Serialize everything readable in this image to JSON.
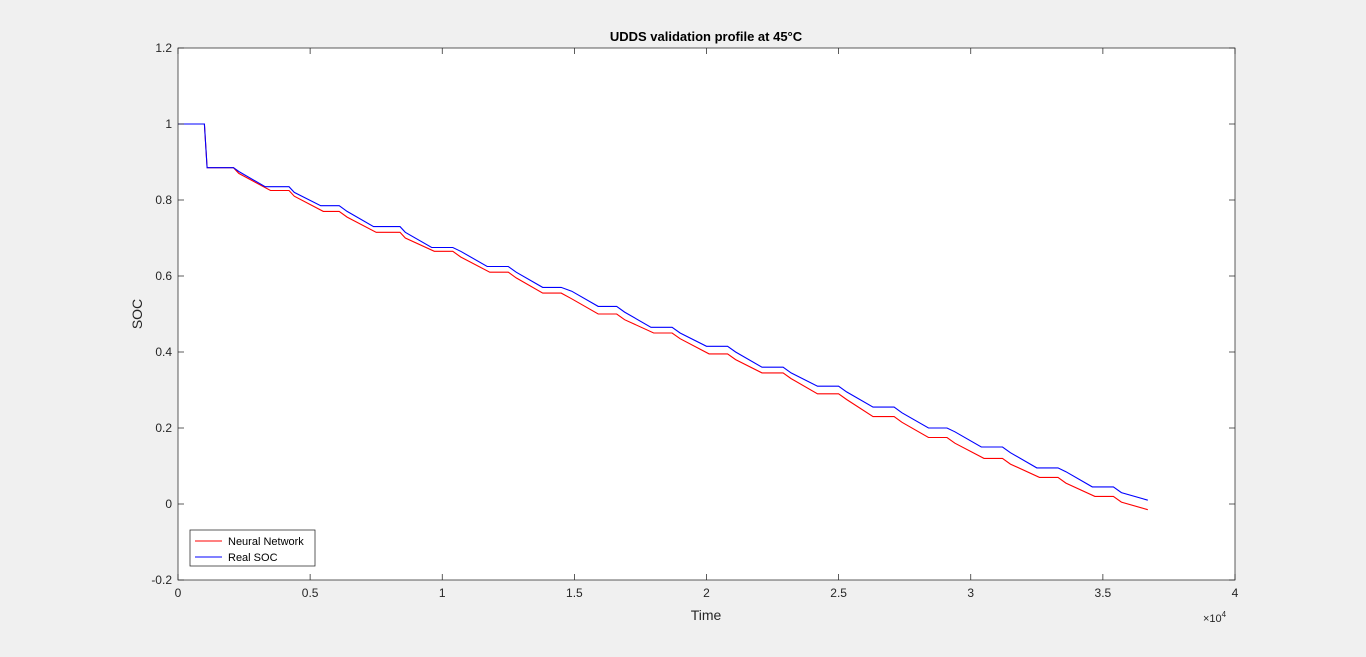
{
  "chart_data": {
    "type": "line",
    "title": "UDDS validation profile at 45°C",
    "xlabel": "Time",
    "ylabel": "SOC",
    "xlim": [
      0,
      4
    ],
    "ylim": [
      -0.2,
      1.2
    ],
    "x_multiplier_label": "×10^4",
    "x_multiplier_base": "×10",
    "x_multiplier_exp": "4",
    "xticks": [
      "0",
      "0.5",
      "1",
      "1.5",
      "2",
      "2.5",
      "3",
      "3.5",
      "4"
    ],
    "yticks": [
      "-0.2",
      "0",
      "0.2",
      "0.4",
      "0.6",
      "0.8",
      "1",
      "1.2"
    ],
    "x_unit_note": "x values in units of 10^4 seconds",
    "grid": false,
    "legend_location": "bottom-left",
    "series": [
      {
        "name": "Neural Network",
        "color": "#ff0000",
        "x": [
          0,
          0.1,
          0.11,
          0.21,
          0.23,
          0.35,
          0.42,
          0.44,
          0.55,
          0.61,
          0.64,
          0.75,
          0.84,
          0.86,
          0.97,
          1.04,
          1.07,
          1.18,
          1.25,
          1.28,
          1.38,
          1.45,
          1.49,
          1.59,
          1.66,
          1.69,
          1.8,
          1.87,
          1.9,
          2.01,
          2.08,
          2.11,
          2.21,
          2.29,
          2.32,
          2.42,
          2.5,
          2.53,
          2.63,
          2.71,
          2.74,
          2.84,
          2.91,
          2.94,
          3.05,
          3.12,
          3.15,
          3.26,
          3.33,
          3.36,
          3.47,
          3.54,
          3.57,
          3.67
        ],
        "y": [
          1.0,
          1.0,
          0.885,
          0.885,
          0.87,
          0.825,
          0.825,
          0.81,
          0.77,
          0.77,
          0.755,
          0.715,
          0.715,
          0.7,
          0.665,
          0.665,
          0.65,
          0.61,
          0.61,
          0.595,
          0.555,
          0.555,
          0.54,
          0.5,
          0.5,
          0.485,
          0.45,
          0.45,
          0.435,
          0.395,
          0.395,
          0.38,
          0.345,
          0.345,
          0.33,
          0.29,
          0.29,
          0.275,
          0.23,
          0.23,
          0.215,
          0.175,
          0.175,
          0.16,
          0.12,
          0.12,
          0.105,
          0.07,
          0.07,
          0.055,
          0.02,
          0.02,
          0.005,
          -0.015
        ]
      },
      {
        "name": "Real SOC",
        "color": "#0000ff",
        "x": [
          0,
          0.1,
          0.11,
          0.21,
          0.23,
          0.33,
          0.42,
          0.44,
          0.54,
          0.61,
          0.64,
          0.74,
          0.84,
          0.86,
          0.96,
          1.04,
          1.07,
          1.17,
          1.25,
          1.28,
          1.38,
          1.45,
          1.49,
          1.59,
          1.66,
          1.69,
          1.79,
          1.87,
          1.9,
          2.0,
          2.08,
          2.11,
          2.21,
          2.29,
          2.32,
          2.42,
          2.5,
          2.53,
          2.63,
          2.71,
          2.74,
          2.84,
          2.91,
          2.94,
          3.04,
          3.12,
          3.15,
          3.25,
          3.33,
          3.36,
          3.46,
          3.54,
          3.57,
          3.67
        ],
        "y": [
          1.0,
          1.0,
          0.885,
          0.885,
          0.875,
          0.835,
          0.835,
          0.82,
          0.785,
          0.785,
          0.77,
          0.73,
          0.73,
          0.715,
          0.675,
          0.675,
          0.665,
          0.625,
          0.625,
          0.61,
          0.57,
          0.57,
          0.56,
          0.52,
          0.52,
          0.505,
          0.465,
          0.465,
          0.45,
          0.415,
          0.415,
          0.4,
          0.36,
          0.36,
          0.345,
          0.31,
          0.31,
          0.295,
          0.255,
          0.255,
          0.24,
          0.2,
          0.2,
          0.19,
          0.15,
          0.15,
          0.135,
          0.095,
          0.095,
          0.085,
          0.045,
          0.045,
          0.03,
          0.01
        ]
      }
    ]
  }
}
